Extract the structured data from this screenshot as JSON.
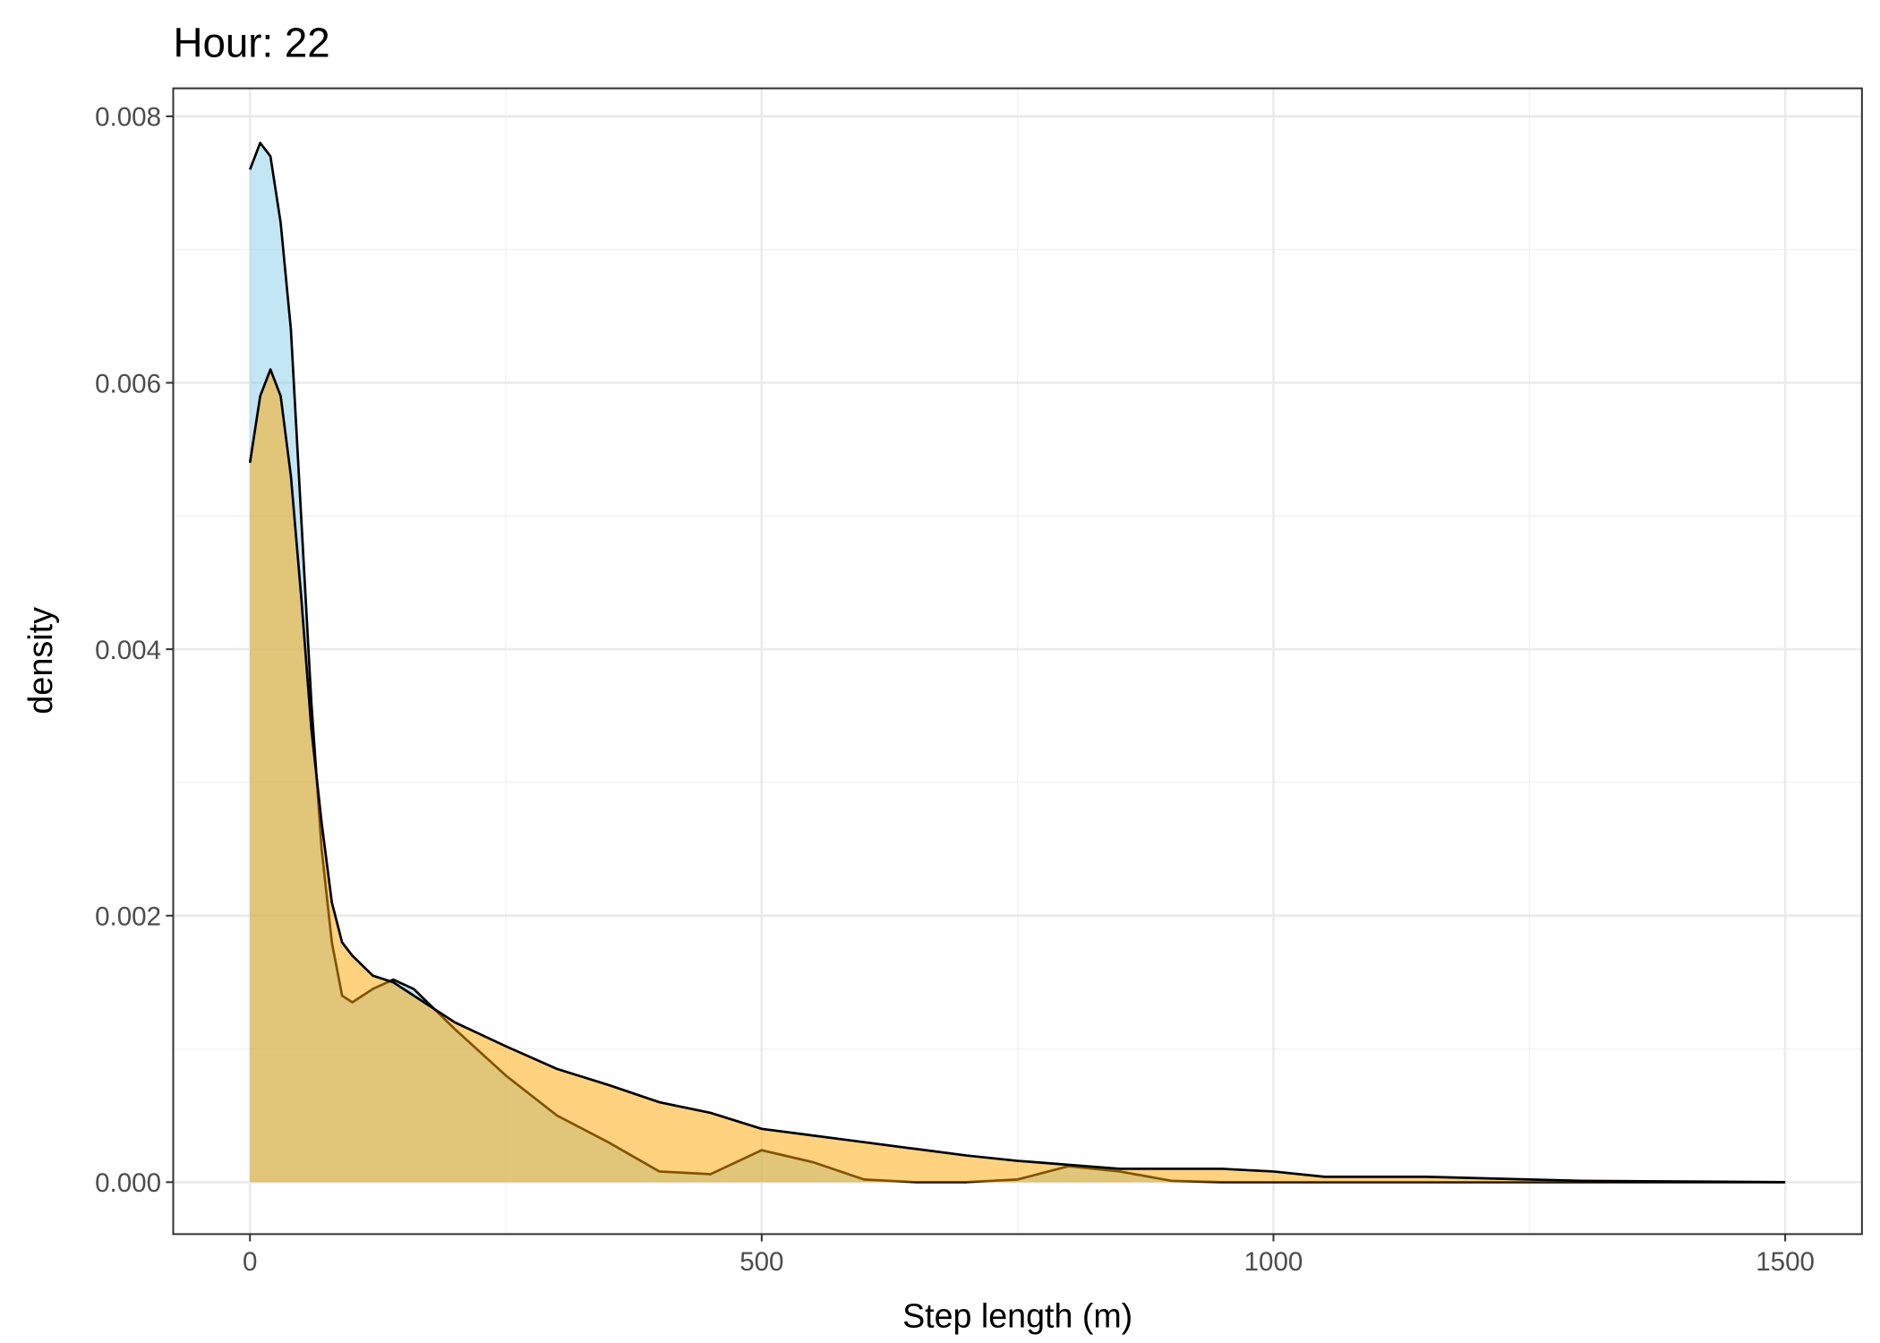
{
  "chart_data": {
    "type": "density",
    "title": "Hour: 22",
    "xlabel": "Step length (m)",
    "ylabel": "density",
    "x": [
      0,
      10,
      20,
      30,
      40,
      50,
      60,
      70,
      80,
      90,
      100,
      120,
      140,
      160,
      180,
      200,
      250,
      300,
      350,
      400,
      450,
      500,
      550,
      600,
      650,
      700,
      750,
      800,
      850,
      900,
      950,
      1000,
      1050,
      1100,
      1150,
      1200,
      1300,
      1400,
      1500
    ],
    "series": [
      {
        "color": "#87CEEB",
        "line_color": "#000000",
        "values": [
          0.0076,
          0.0078,
          0.0077,
          0.0072,
          0.0064,
          0.005,
          0.0036,
          0.0025,
          0.0018,
          0.0014,
          0.00135,
          0.00145,
          0.00152,
          0.00145,
          0.0013,
          0.00115,
          0.0008,
          0.0005,
          0.0003,
          8e-05,
          6e-05,
          0.00024,
          0.00015,
          2e-05,
          0,
          0,
          2e-05,
          0.00012,
          8e-05,
          1e-05,
          0,
          0,
          0,
          0,
          0,
          0,
          0,
          0,
          0
        ]
      },
      {
        "color": "#FFA500",
        "line_color": "#000000",
        "values": [
          0.0054,
          0.0059,
          0.0061,
          0.0059,
          0.0053,
          0.0044,
          0.0034,
          0.0027,
          0.0021,
          0.0018,
          0.0017,
          0.00155,
          0.0015,
          0.0014,
          0.0013,
          0.0012,
          0.00102,
          0.00085,
          0.00073,
          0.0006,
          0.00052,
          0.0004,
          0.00035,
          0.0003,
          0.00025,
          0.0002,
          0.00016,
          0.00013,
          0.0001,
          0.0001,
          0.0001,
          8e-05,
          4e-05,
          4e-05,
          4e-05,
          3e-05,
          1e-05,
          5e-06,
          0
        ]
      }
    ],
    "alpha": 0.5,
    "xlim": [
      -75,
      1575
    ],
    "ylim": [
      -0.00039,
      0.00821
    ],
    "xticks": [
      0,
      500,
      1000,
      1500
    ],
    "yticks": [
      {
        "value": 0,
        "label": "0.000"
      },
      {
        "value": 0.002,
        "label": "0.002"
      },
      {
        "value": 0.004,
        "label": "0.004"
      },
      {
        "value": 0.006,
        "label": "0.006"
      },
      {
        "value": 0.008,
        "label": "0.008"
      }
    ],
    "minor_xticks": [
      250,
      750,
      1250
    ],
    "minor_yticks": [
      0.001,
      0.003,
      0.005,
      0.007
    ],
    "grid": true
  }
}
